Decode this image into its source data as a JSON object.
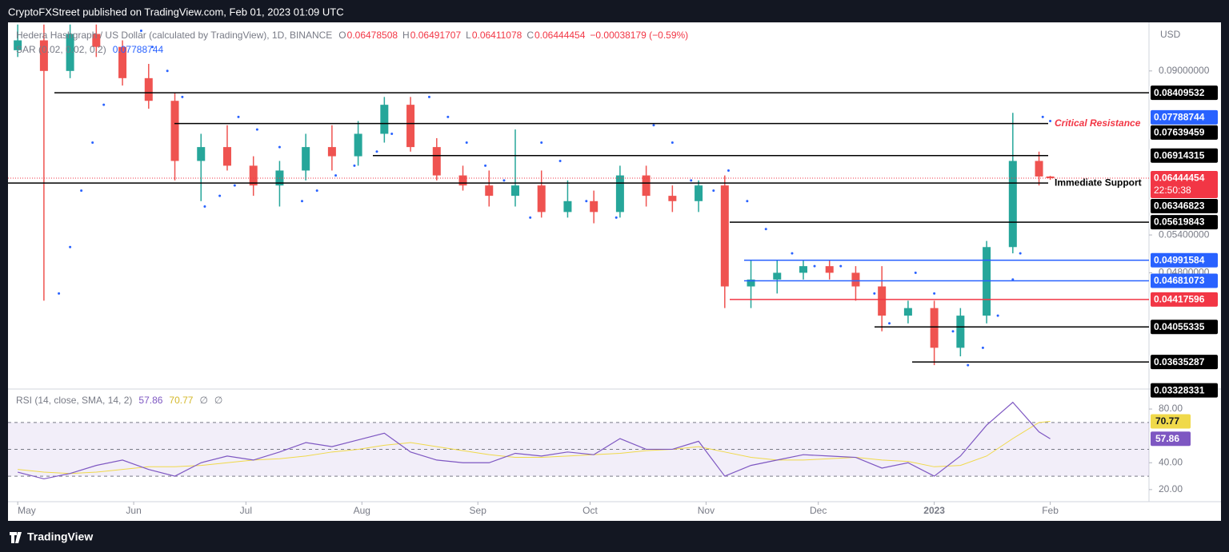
{
  "header": {
    "text": "CryptoFXStreet published on TradingView.com, Feb 01, 2023 01:09 UTC"
  },
  "footer": {
    "brand": "TradingView"
  },
  "chart_data": [
    {
      "type": "candlestick",
      "title": "Hedera Hashgraph / US Dollar (calculated by TradingView), 1D, BINANCE",
      "ohlc_legend": [
        {
          "label": "O",
          "value": 0.06478508
        },
        {
          "label": "H",
          "value": 0.06491707
        },
        {
          "label": "L",
          "value": 0.06411078
        },
        {
          "label": "C",
          "value": 0.06444454
        }
      ],
      "change": "−0.00038179 (−0.59%)",
      "currency": "USD",
      "log_scale": true,
      "xlim": [
        -2.6,
        302.4
      ],
      "ylim": [
        0.0335,
        0.1047
      ],
      "yticks": [
        {
          "value": 0.09,
          "label": "0.09000000"
        },
        {
          "value": 0.054,
          "label": "0.05400000"
        },
        {
          "value": 0.048,
          "label": "0.04800000"
        }
      ],
      "xticks": [
        {
          "value": 0,
          "label": "May"
        },
        {
          "value": 31,
          "label": "Jun"
        },
        {
          "value": 61,
          "label": "Jul"
        },
        {
          "value": 92,
          "label": "Aug"
        },
        {
          "value": 123,
          "label": "Sep"
        },
        {
          "value": 153,
          "label": "Oct"
        },
        {
          "value": 184,
          "label": "Nov"
        },
        {
          "value": 214,
          "label": "Dec"
        },
        {
          "value": 245,
          "label": "2023"
        },
        {
          "value": 276,
          "label": "Feb"
        }
      ],
      "up_color": "#26a69a",
      "down_color": "#ef5350",
      "x": [
        0,
        7,
        14,
        21,
        28,
        35,
        42,
        49,
        56,
        63,
        70,
        77,
        84,
        91,
        98,
        105,
        112,
        119,
        126,
        133,
        140,
        147,
        154,
        161,
        168,
        175,
        182,
        189,
        196,
        203,
        210,
        217,
        224,
        231,
        238,
        245,
        252,
        259,
        266,
        273,
        276
      ],
      "open": [
        0.096,
        0.099,
        0.09,
        0.101,
        0.097,
        0.088,
        0.082,
        0.068,
        0.071,
        0.067,
        0.063,
        0.066,
        0.071,
        0.069,
        0.074,
        0.081,
        0.071,
        0.065,
        0.063,
        0.061,
        0.063,
        0.058,
        0.06,
        0.058,
        0.065,
        0.061,
        0.06,
        0.063,
        0.046,
        0.047,
        0.048,
        0.049,
        0.048,
        0.046,
        0.042,
        0.043,
        0.038,
        0.042,
        0.052,
        0.068,
        0.06478508
      ],
      "high": [
        0.104,
        0.104,
        0.104,
        0.104,
        0.099,
        0.092,
        0.084,
        0.074,
        0.076,
        0.069,
        0.068,
        0.074,
        0.076,
        0.077,
        0.083,
        0.083,
        0.073,
        0.067,
        0.066,
        0.075,
        0.066,
        0.064,
        0.062,
        0.067,
        0.067,
        0.063,
        0.064,
        0.065,
        0.05,
        0.05,
        0.05,
        0.05,
        0.049,
        0.049,
        0.044,
        0.044,
        0.043,
        0.053,
        0.079,
        0.07,
        0.06491707
      ],
      "low": [
        0.094,
        0.044,
        0.088,
        0.094,
        0.086,
        0.08,
        0.064,
        0.06,
        0.066,
        0.061,
        0.059,
        0.064,
        0.066,
        0.067,
        0.072,
        0.07,
        0.064,
        0.062,
        0.059,
        0.059,
        0.057,
        0.057,
        0.056,
        0.057,
        0.059,
        0.058,
        0.058,
        0.043,
        0.043,
        0.045,
        0.047,
        0.047,
        0.044,
        0.04,
        0.041,
        0.036,
        0.037,
        0.041,
        0.051,
        0.063,
        0.06411078
      ],
      "close": [
        0.099,
        0.09,
        0.101,
        0.097,
        0.088,
        0.082,
        0.068,
        0.071,
        0.067,
        0.063,
        0.066,
        0.071,
        0.069,
        0.074,
        0.081,
        0.071,
        0.065,
        0.063,
        0.061,
        0.063,
        0.058,
        0.06,
        0.058,
        0.065,
        0.061,
        0.06,
        0.063,
        0.046,
        0.047,
        0.048,
        0.049,
        0.048,
        0.046,
        0.042,
        0.043,
        0.038,
        0.042,
        0.052,
        0.068,
        0.06478508,
        0.06444454
      ],
      "indicator": {
        "name": "SAR (0.02, 0.02, 0.2)",
        "value": 0.07788744,
        "color": "#2962ff",
        "x": [
          11,
          14,
          17,
          20,
          23,
          33,
          36,
          40,
          44,
          50,
          54,
          58,
          59,
          64,
          70,
          76,
          80,
          85,
          90,
          96,
          100,
          110,
          115,
          120,
          125,
          130,
          137,
          140,
          145,
          152,
          160,
          170,
          175,
          180,
          186,
          190,
          195,
          200,
          207,
          213,
          220,
          229,
          233,
          240,
          245,
          250,
          254,
          258,
          262,
          266,
          268,
          274,
          276
        ],
        "values": [
          0.045,
          0.052,
          0.062,
          0.072,
          0.081,
          0.102,
          0.097,
          0.09,
          0.083,
          0.059,
          0.061,
          0.063,
          0.078,
          0.075,
          0.071,
          0.06,
          0.062,
          0.065,
          0.067,
          0.07,
          0.074,
          0.083,
          0.078,
          0.072,
          0.067,
          0.064,
          0.057,
          0.072,
          0.068,
          0.06,
          0.057,
          0.076,
          0.072,
          0.064,
          0.062,
          0.066,
          0.06,
          0.055,
          0.051,
          0.049,
          0.049,
          0.045,
          0.041,
          0.048,
          0.045,
          0.04,
          0.036,
          0.038,
          0.042,
          0.047,
          0.051,
          0.078,
          0.077
        ]
      },
      "levels": [
        {
          "value": 0.08409532,
          "color": "#000000"
        },
        {
          "value": 0.07639459,
          "color": "#000000",
          "annotation": "Critical Resistance",
          "annotation_color": "#f23645"
        },
        {
          "value": 0.06914315,
          "color": "#000000"
        },
        {
          "value": 0.06346823,
          "color": "#000000",
          "annotation": "Immediate Support",
          "annotation_color": "#000000"
        },
        {
          "value": 0.05619843,
          "color": "#000000"
        },
        {
          "value": 0.04991584,
          "color": "#2962ff"
        },
        {
          "value": 0.04681073,
          "color": "#2962ff"
        },
        {
          "value": 0.04417596,
          "color": "#f23645"
        },
        {
          "value": 0.04055335,
          "color": "#000000"
        },
        {
          "value": 0.03635287,
          "color": "#000000"
        },
        {
          "value": 0.03328331,
          "color": "#000000"
        }
      ],
      "last_price": {
        "value": 0.06444454,
        "countdown": "22:50:38",
        "color": "#f23645"
      }
    },
    {
      "type": "line",
      "title": "RSI (14, close, SMA, 14, 2)",
      "na_marks": [
        "∅",
        "∅"
      ],
      "xlim": [
        -2.6,
        302.4
      ],
      "ylim": [
        11,
        94.3
      ],
      "yticks": [
        {
          "value": 80,
          "label": "80.00"
        },
        {
          "value": 40,
          "label": "40.00"
        },
        {
          "value": 20,
          "label": "20.00"
        }
      ],
      "bands": [
        70,
        50,
        30
      ],
      "band_color": "#7e57c2",
      "x": [
        0,
        7,
        14,
        21,
        28,
        35,
        42,
        49,
        56,
        63,
        70,
        77,
        84,
        91,
        98,
        105,
        112,
        119,
        126,
        133,
        140,
        147,
        154,
        161,
        168,
        175,
        182,
        189,
        196,
        203,
        210,
        217,
        224,
        231,
        238,
        245,
        252,
        259,
        266,
        273,
        276
      ],
      "series": [
        {
          "name": "RSI",
          "color": "#7e57c2",
          "values": [
            33,
            28,
            32,
            38,
            42,
            35,
            30,
            40,
            45,
            42,
            48,
            55,
            52,
            57,
            62,
            48,
            42,
            40,
            40,
            47,
            45,
            48,
            46,
            58,
            50,
            50,
            56,
            30,
            38,
            42,
            46,
            45,
            44,
            36,
            40,
            30,
            45,
            68,
            85,
            63,
            57.86
          ]
        },
        {
          "name": "SMA",
          "color": "#f0d94a",
          "values": [
            35,
            33,
            32,
            33,
            35,
            37,
            37,
            38,
            40,
            42,
            43,
            45,
            48,
            50,
            53,
            55,
            52,
            49,
            46,
            44,
            44,
            45,
            46,
            47,
            49,
            50,
            52,
            48,
            44,
            42,
            42,
            43,
            44,
            42,
            41,
            37,
            38,
            45,
            58,
            70,
            70.77
          ]
        }
      ]
    }
  ]
}
